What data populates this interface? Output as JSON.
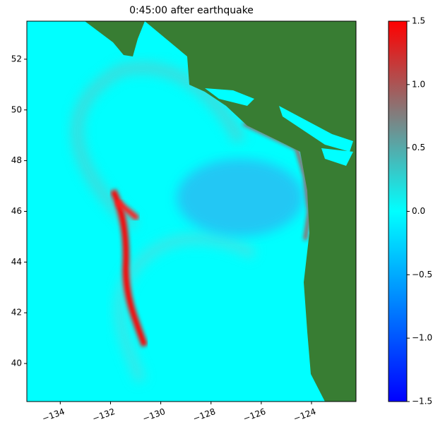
{
  "chart_data": {
    "type": "heatmap",
    "title": "0:45:00 after earthquake",
    "xlim": [
      -135.33,
      -122.23
    ],
    "xticks": [
      {
        "value": -134,
        "label": "−134"
      },
      {
        "value": -132,
        "label": "−132"
      },
      {
        "value": -130,
        "label": "−130"
      },
      {
        "value": -128,
        "label": "−128"
      },
      {
        "value": -126,
        "label": "−126"
      },
      {
        "value": -124,
        "label": "−124"
      }
    ],
    "ylim": [
      38.5,
      53.5
    ],
    "yticks": [
      40,
      42,
      44,
      46,
      48,
      50,
      52
    ],
    "colorbar": {
      "lim": [
        -1.5,
        1.5
      ],
      "ticks": [
        {
          "value": -1.5,
          "label": "−1.5"
        },
        {
          "value": -1.0,
          "label": "−1.0"
        },
        {
          "value": -0.5,
          "label": "−0.5"
        },
        {
          "value": 0,
          "label": "0.0"
        },
        0.5,
        {
          "value": 1.0,
          "label": "1.0"
        },
        1.5
      ],
      "colors": [
        "#0000ff",
        "#00ffff",
        "#ff0000"
      ]
    },
    "land_color": "#387d33"
  }
}
